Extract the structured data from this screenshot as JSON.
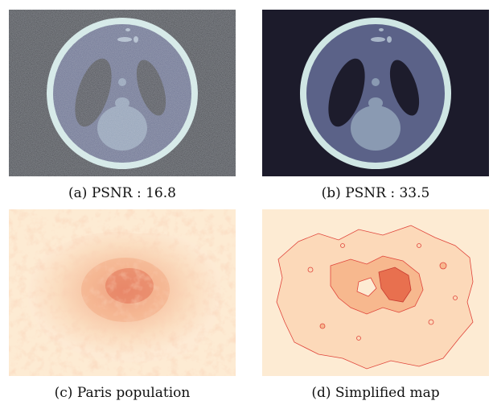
{
  "figure": {
    "panels": [
      {
        "id": "a",
        "caption": "(a) PSNR : 16.8",
        "content": "noisy Shepp-Logan phantom"
      },
      {
        "id": "b",
        "caption": "(b) PSNR : 33.5",
        "content": "denoised Shepp-Logan phantom"
      },
      {
        "id": "c",
        "caption": "(c) Paris population",
        "content": "population heat map"
      },
      {
        "id": "d",
        "caption": "(d) Simplified map",
        "content": "piecewise-constant simplified map"
      }
    ],
    "colors": {
      "phantom_background_noisy": "#141422",
      "phantom_background_clean": "#1c1b2b",
      "phantom_ring": "#cfe6e4",
      "phantom_body": "#5b6288",
      "phantom_dark": "#1d1c2c",
      "phantom_light": "#8a9ab2",
      "map_low": "#fdebd3",
      "map_mid": "#f7b88e",
      "map_high": "#d9463a",
      "map_outline": "#e0443a"
    }
  }
}
